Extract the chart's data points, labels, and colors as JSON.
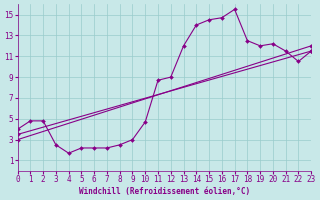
{
  "bg_color": "#c8e8e8",
  "line_color": "#880088",
  "grid_color": "#99cccc",
  "xlim": [
    0,
    23
  ],
  "ylim": [
    0,
    16
  ],
  "xticks": [
    0,
    1,
    2,
    3,
    4,
    5,
    6,
    7,
    8,
    9,
    10,
    11,
    12,
    13,
    14,
    15,
    16,
    17,
    18,
    19,
    20,
    21,
    22,
    23
  ],
  "yticks": [
    1,
    3,
    5,
    7,
    9,
    11,
    13,
    15
  ],
  "xlabel": "Windchill (Refroidissement éolien,°C)",
  "series1_x": [
    0,
    1,
    2,
    3,
    4,
    5,
    6,
    7,
    8,
    9,
    10,
    11,
    12,
    13,
    14,
    15,
    16,
    17,
    18,
    19,
    20,
    21,
    22,
    23
  ],
  "series1_y": [
    4.0,
    4.8,
    4.8,
    2.5,
    1.7,
    2.2,
    2.2,
    2.2,
    2.5,
    3.0,
    4.7,
    8.7,
    9.0,
    12.0,
    14.0,
    14.5,
    14.7,
    15.5,
    12.5,
    12.0,
    12.2,
    11.5,
    10.5,
    11.5
  ],
  "series2_x": [
    0,
    23
  ],
  "series2_y": [
    3.5,
    11.5
  ],
  "series3_x": [
    0,
    23
  ],
  "series3_y": [
    3.0,
    12.0
  ],
  "marker_size": 2.0,
  "line_width": 0.8,
  "tick_fontsize": 5.5,
  "xlabel_fontsize": 5.5
}
